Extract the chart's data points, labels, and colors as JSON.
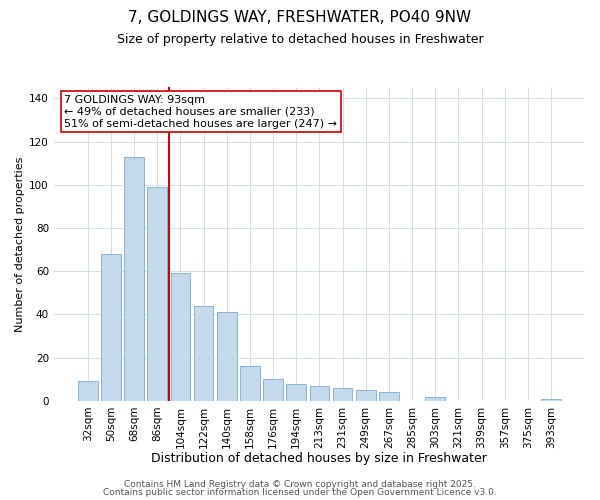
{
  "title": "7, GOLDINGS WAY, FRESHWATER, PO40 9NW",
  "subtitle": "Size of property relative to detached houses in Freshwater",
  "xlabel": "Distribution of detached houses by size in Freshwater",
  "ylabel": "Number of detached properties",
  "categories": [
    "32sqm",
    "50sqm",
    "68sqm",
    "86sqm",
    "104sqm",
    "122sqm",
    "140sqm",
    "158sqm",
    "176sqm",
    "194sqm",
    "213sqm",
    "231sqm",
    "249sqm",
    "267sqm",
    "285sqm",
    "303sqm",
    "321sqm",
    "339sqm",
    "357sqm",
    "375sqm",
    "393sqm"
  ],
  "values": [
    9,
    68,
    113,
    99,
    59,
    44,
    41,
    16,
    10,
    8,
    7,
    6,
    5,
    4,
    0,
    2,
    0,
    0,
    0,
    0,
    1
  ],
  "bar_color": "#c5d9ec",
  "bar_edge_color": "#8ab4d4",
  "ylim": [
    0,
    145
  ],
  "yticks": [
    0,
    20,
    40,
    60,
    80,
    100,
    120,
    140
  ],
  "vline_x": 3.5,
  "vline_color": "#cc0000",
  "annotation_title": "7 GOLDINGS WAY: 93sqm",
  "annotation_line1": "← 49% of detached houses are smaller (233)",
  "annotation_line2": "51% of semi-detached houses are larger (247) →",
  "annotation_box_color": "#ffffff",
  "annotation_box_edge": "#cc0000",
  "footer1": "Contains HM Land Registry data © Crown copyright and database right 2025.",
  "footer2": "Contains public sector information licensed under the Open Government Licence v3.0.",
  "background_color": "#ffffff",
  "title_fontsize": 11,
  "subtitle_fontsize": 9,
  "xlabel_fontsize": 9,
  "ylabel_fontsize": 8,
  "tick_fontsize": 7.5,
  "annotation_fontsize": 8,
  "footer_fontsize": 6.5
}
